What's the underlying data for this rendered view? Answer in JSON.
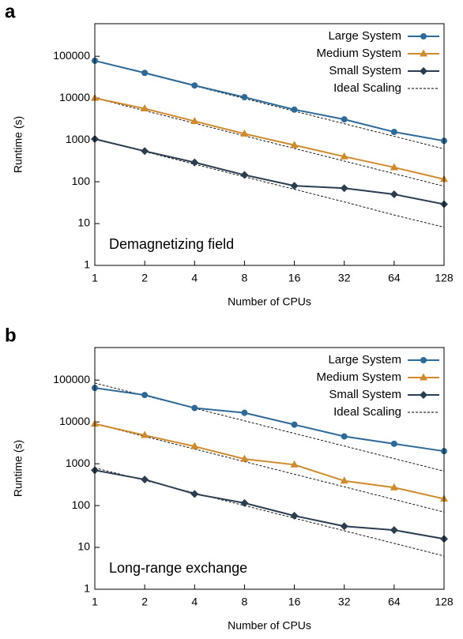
{
  "chart_data": [
    {
      "type": "line",
      "panel_label": "a",
      "annotation": "Demagnetizing field",
      "xlabel": "Number of CPUs",
      "ylabel": "Runtime (s)",
      "x": [
        1,
        2,
        4,
        8,
        16,
        32,
        64,
        128
      ],
      "xscale": "log",
      "yscale": "log",
      "xlim": [
        1,
        128
      ],
      "xticks": [
        1,
        2,
        4,
        8,
        16,
        32,
        64,
        128
      ],
      "ylim": [
        1,
        600000
      ],
      "yticks": [
        1,
        10,
        100,
        1000,
        10000,
        100000
      ],
      "legend": "upper right",
      "series": [
        {
          "name": "Large System",
          "color": "#2e6a99",
          "marker": "circle",
          "values": [
            78000,
            40000,
            20000,
            10500,
            5300,
            3100,
            1550,
            950
          ]
        },
        {
          "name": "Medium System",
          "color": "#d08a2c",
          "marker": "triangle",
          "values": [
            10000,
            5600,
            2800,
            1400,
            750,
            400,
            220,
            115
          ]
        },
        {
          "name": "Small System",
          "color": "#2b3d50",
          "marker": "diamond",
          "values": [
            1050,
            540,
            290,
            145,
            80,
            70,
            50,
            29
          ]
        }
      ],
      "reference": {
        "name": "Ideal Scaling",
        "color": "#000000",
        "lines": [
          [
            78000,
            39000,
            19500,
            9750,
            4875,
            2437,
            1219,
            609
          ],
          [
            10000,
            5000,
            2500,
            1250,
            625,
            312,
            156,
            78
          ],
          [
            1050,
            525,
            262,
            131,
            66,
            33,
            16,
            8.2
          ]
        ]
      }
    },
    {
      "type": "line",
      "panel_label": "b",
      "annotation": "Long-range exchange",
      "xlabel": "Number of CPUs",
      "ylabel": "Runtime (s)",
      "x": [
        1,
        2,
        4,
        8,
        16,
        32,
        64,
        128
      ],
      "xscale": "log",
      "yscale": "log",
      "xlim": [
        1,
        128
      ],
      "xticks": [
        1,
        2,
        4,
        8,
        16,
        32,
        64,
        128
      ],
      "ylim": [
        1,
        600000
      ],
      "yticks": [
        1,
        10,
        100,
        1000,
        10000,
        100000
      ],
      "legend": "upper right",
      "series": [
        {
          "name": "Large System",
          "color": "#2e6a99",
          "marker": "circle",
          "values": [
            65000,
            44000,
            21500,
            16500,
            8600,
            4500,
            3000,
            2000
          ]
        },
        {
          "name": "Medium System",
          "color": "#d08a2c",
          "marker": "triangle",
          "values": [
            9000,
            4800,
            2600,
            1300,
            950,
            390,
            270,
            145
          ]
        },
        {
          "name": "Small System",
          "color": "#2b3d50",
          "marker": "diamond",
          "values": [
            700,
            420,
            190,
            115,
            57,
            32,
            26,
            16
          ]
        }
      ],
      "reference": {
        "name": "Ideal Scaling",
        "color": "#000000",
        "lines": [
          [
            85000,
            42500,
            21250,
            10625,
            5312,
            2656,
            1328,
            664
          ],
          [
            9000,
            4500,
            2250,
            1125,
            562,
            281,
            140,
            70
          ],
          [
            800,
            400,
            200,
            100,
            50,
            25,
            12.5,
            6.25
          ]
        ]
      }
    }
  ]
}
